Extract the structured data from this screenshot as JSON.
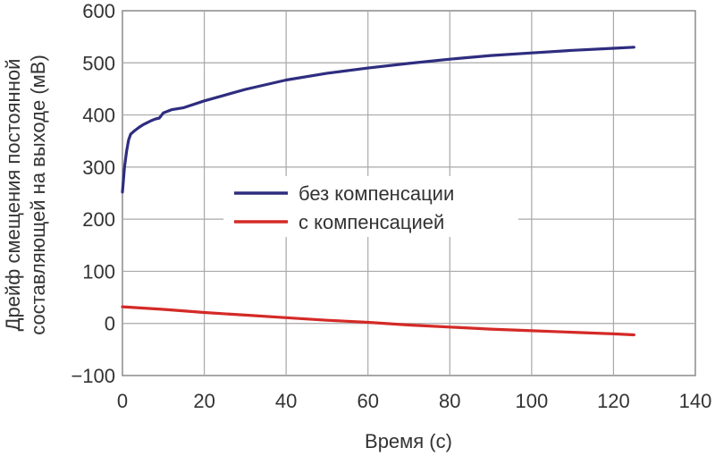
{
  "chart_data": {
    "type": "line",
    "xlabel": "Время (с)",
    "ylabel_lines": [
      "Дрейф смещения постоянной",
      "составляющей на выходе (мВ)"
    ],
    "xlim": [
      0,
      140
    ],
    "ylim": [
      -100,
      600
    ],
    "xticks": [
      0,
      20,
      40,
      60,
      80,
      100,
      120,
      140
    ],
    "yticks": [
      600,
      500,
      400,
      300,
      200,
      100,
      0,
      -100
    ],
    "ytick_labels": [
      "600",
      "500",
      "400",
      "300",
      "200",
      "100",
      "0",
      "−100"
    ],
    "grid": true,
    "legend_position": "center",
    "series": [
      {
        "name": "без компенсации",
        "color": "#2e2d7f",
        "x": [
          0,
          0.5,
          1,
          1.5,
          2,
          3,
          4,
          5,
          6,
          7,
          8,
          9,
          10,
          12,
          15,
          20,
          25,
          30,
          40,
          50,
          60,
          70,
          80,
          90,
          100,
          110,
          120,
          125
        ],
        "y": [
          252,
          300,
          330,
          352,
          363,
          370,
          376,
          381,
          385,
          389,
          392,
          394,
          404,
          410,
          414,
          427,
          438,
          449,
          467,
          480,
          490,
          499,
          507,
          514,
          519,
          524,
          528,
          530
        ]
      },
      {
        "name": "с компенсацией",
        "color": "#d42a27",
        "x": [
          0,
          10,
          20,
          30,
          40,
          50,
          60,
          70,
          80,
          90,
          100,
          110,
          120,
          125
        ],
        "y": [
          32,
          27,
          21,
          16,
          11,
          6,
          2,
          -3,
          -7,
          -11,
          -14,
          -17,
          -20,
          -22
        ]
      }
    ]
  }
}
